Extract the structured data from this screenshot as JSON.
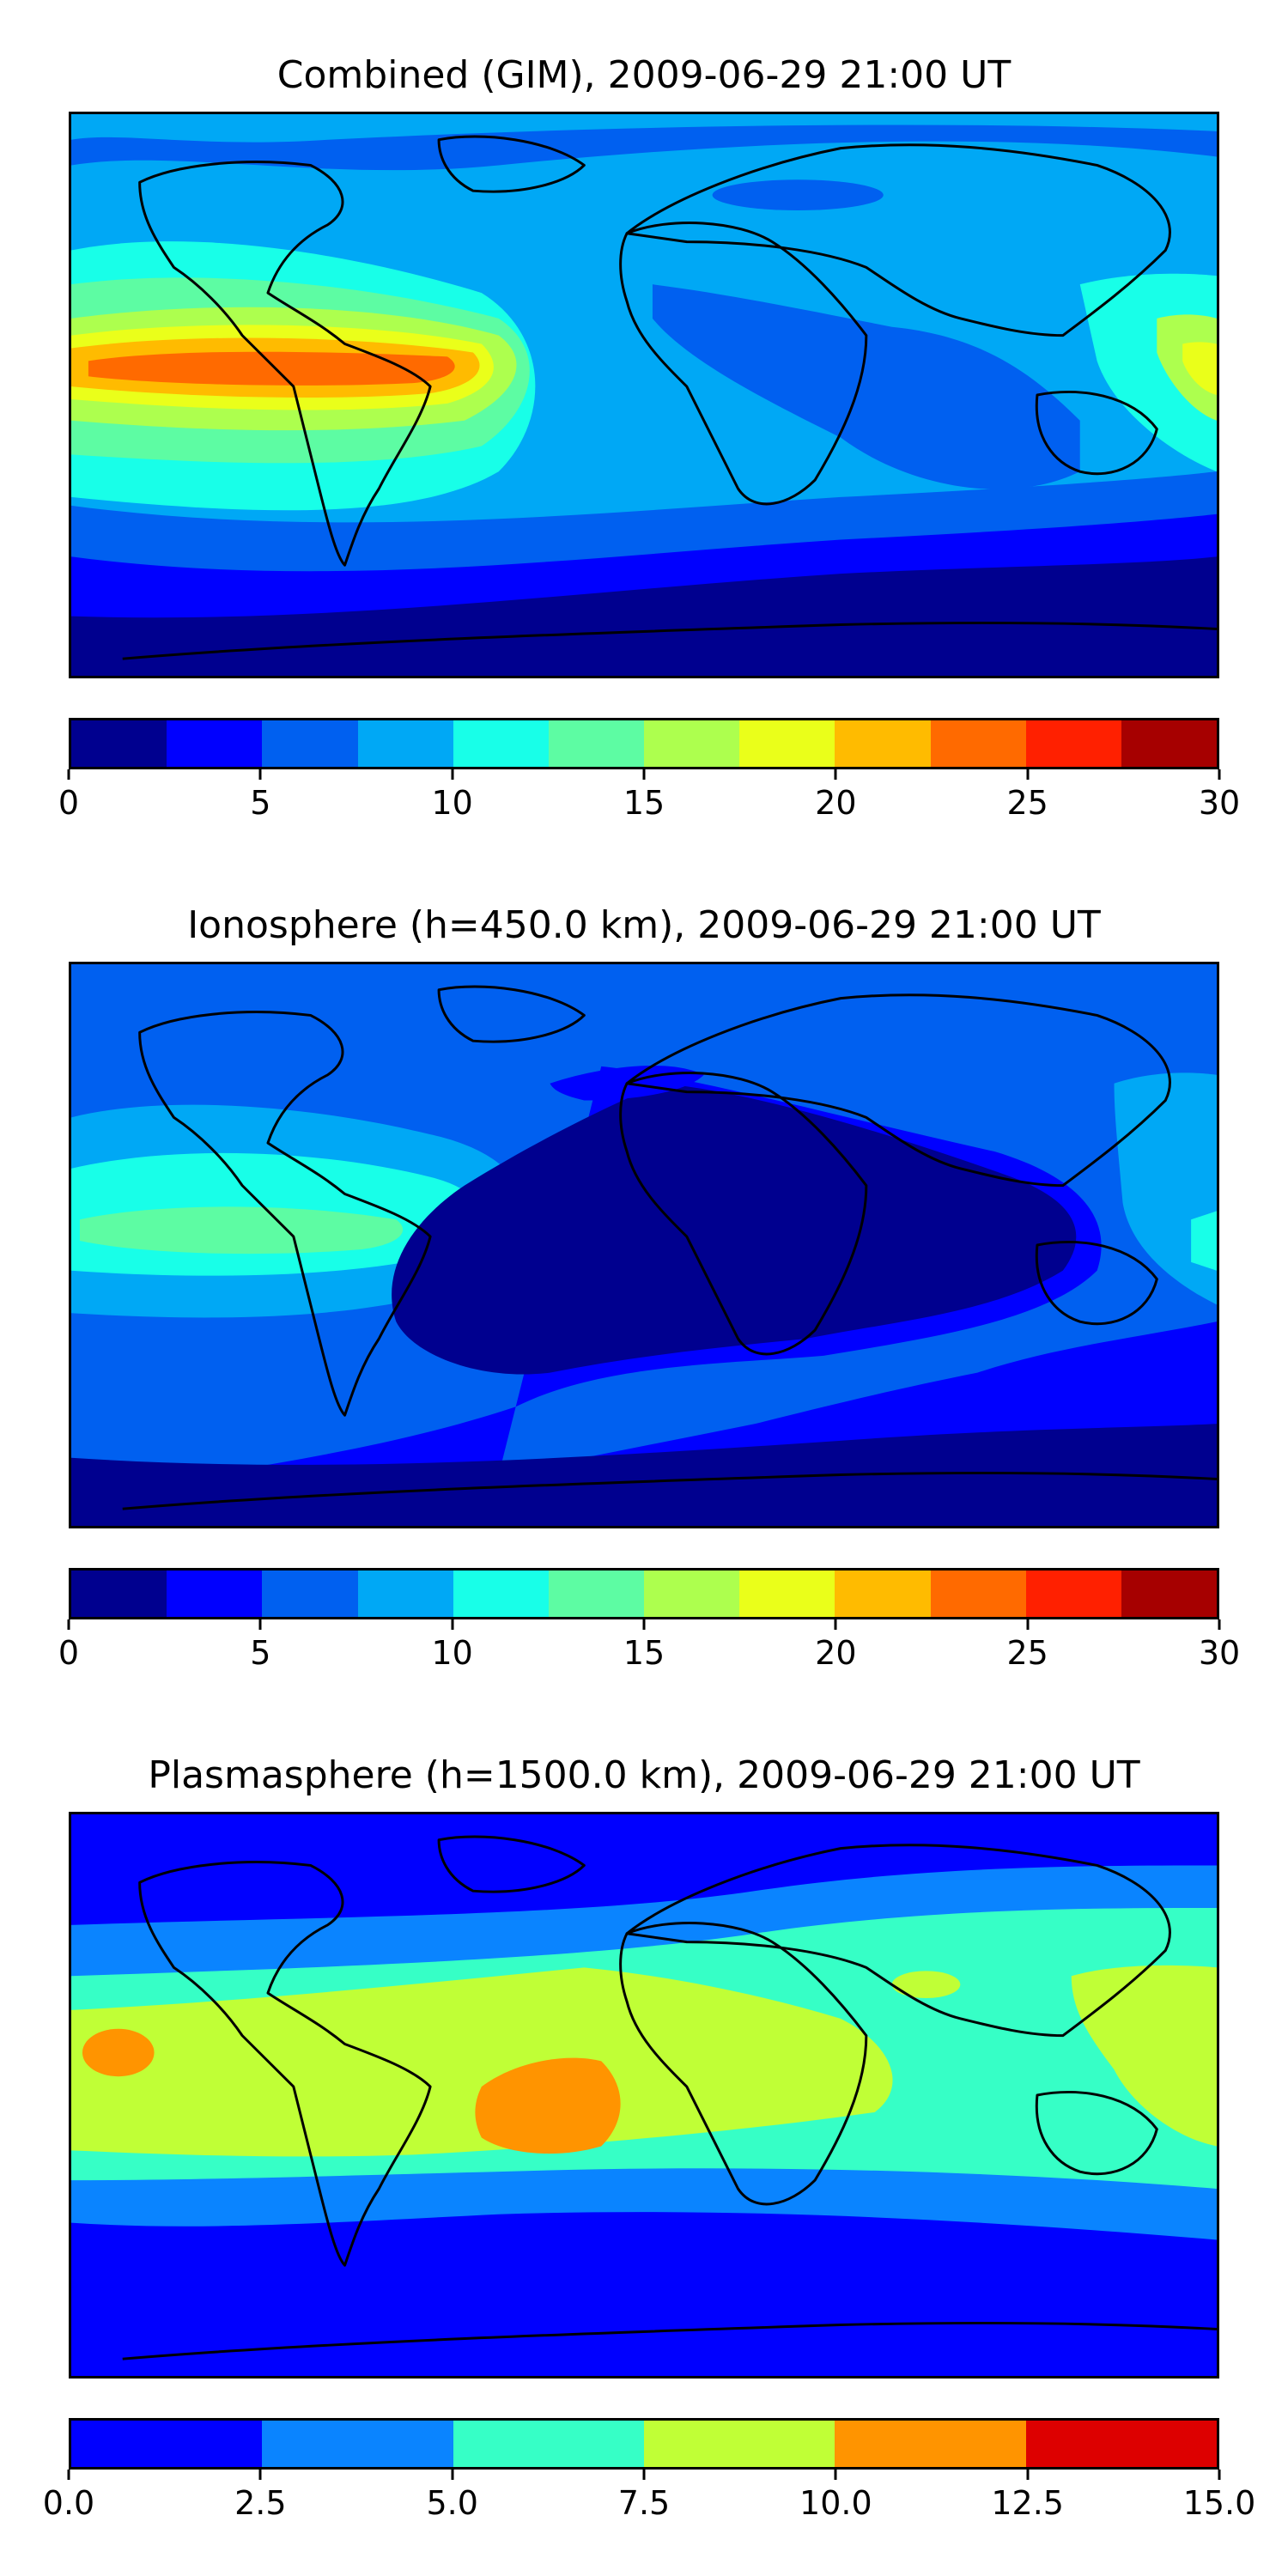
{
  "panels": [
    {
      "id": "combined",
      "title": "Combined (GIM), 2009-06-29 21:00 UT",
      "colorbar": {
        "colors": [
          "#00008f",
          "#0000ff",
          "#0060f0",
          "#00a8f5",
          "#18ffe8",
          "#5dfca3",
          "#adff4e",
          "#eaff1a",
          "#ffbb00",
          "#ff6a00",
          "#ff2000",
          "#a60000"
        ],
        "tick_labels": [
          "0",
          "5",
          "10",
          "15",
          "20",
          "25",
          "30"
        ]
      }
    },
    {
      "id": "ionosphere",
      "title": "Ionosphere  (h=450.0 km), 2009-06-29 21:00 UT",
      "colorbar": {
        "colors": [
          "#00008f",
          "#0000ff",
          "#0060f0",
          "#00a8f5",
          "#18ffe8",
          "#5dfca3",
          "#adff4e",
          "#eaff1a",
          "#ffbb00",
          "#ff6a00",
          "#ff2000",
          "#a60000"
        ],
        "tick_labels": [
          "0",
          "5",
          "10",
          "15",
          "20",
          "25",
          "30"
        ]
      }
    },
    {
      "id": "plasmasphere",
      "title": "Plasmasphere (h=1500.0 km), 2009-06-29 21:00 UT",
      "colorbar": {
        "colors": [
          "#0000ff",
          "#0a84ff",
          "#36ffc6",
          "#c0ff36",
          "#ff9400",
          "#dd0000"
        ],
        "tick_labels": [
          "0.0",
          "2.5",
          "5.0",
          "7.5",
          "10.0",
          "12.5",
          "15.0"
        ]
      }
    }
  ]
}
